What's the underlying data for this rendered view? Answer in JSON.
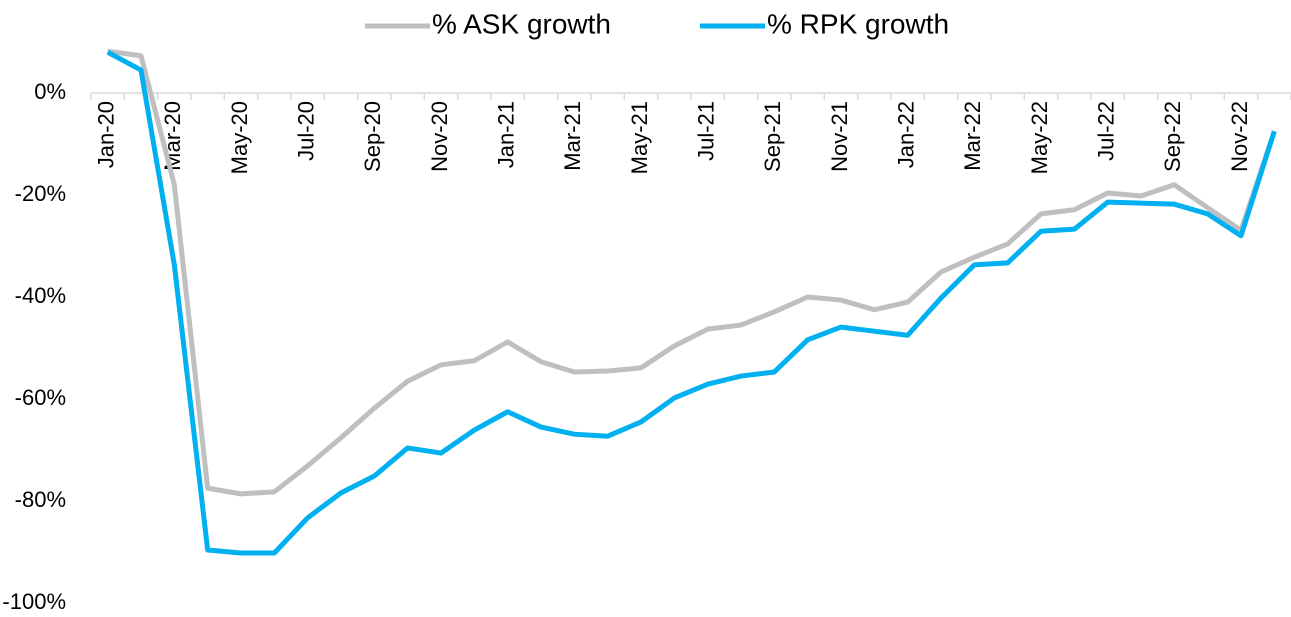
{
  "chart_data": {
    "type": "line",
    "categories": [
      "Jan-20",
      null,
      "Mar-20",
      null,
      "May-20",
      null,
      "Jul-20",
      null,
      "Sep-20",
      null,
      "Nov-20",
      null,
      "Jan-21",
      null,
      "Mar-21",
      null,
      "May-21",
      null,
      "Jul-21",
      null,
      "Sep-21",
      null,
      "Nov-21",
      null,
      "Jan-22",
      null,
      "Mar-22",
      null,
      "May-22",
      null,
      "Jul-22",
      null,
      "Sep-22",
      null,
      "Nov-22",
      null
    ],
    "series": [
      {
        "name": "% ASK growth",
        "color": "#bfbfbf",
        "values": [
          8.2,
          7.3,
          -18,
          -77.5,
          -78.6,
          -78.2,
          -73.1,
          -67.6,
          -61.8,
          -56.5,
          -53.3,
          -52.5,
          -48.8,
          -52.7,
          -54.7,
          -54.5,
          -53.9,
          -49.6,
          -46.3,
          -45.5,
          -42.9,
          -40,
          -40.6,
          -42.5,
          -41,
          -35.1,
          -32.2,
          -29.6,
          -23.7,
          -22.9,
          -19.6,
          -20.2,
          -18,
          -22.5,
          -26.9,
          -7.5
        ]
      },
      {
        "name": "% RPK growth",
        "color": "#00b0f0",
        "values": [
          8,
          4.5,
          -33.7,
          -89.6,
          -90.2,
          -90.2,
          -83.3,
          -78.4,
          -75.1,
          -69.6,
          -70.6,
          -66.1,
          -62.5,
          -65.5,
          -66.9,
          -67.3,
          -64.5,
          -59.8,
          -57.1,
          -55.5,
          -54.7,
          -48.4,
          -45.9,
          -46.7,
          -47.5,
          -40.2,
          -33.7,
          -33.3,
          -27.1,
          -26.7,
          -21.4,
          -21.6,
          -21.8,
          -23.7,
          -28,
          -7.5
        ]
      }
    ],
    "ylim": [
      -100,
      10
    ],
    "yticks": [
      {
        "value": 0,
        "label": "0%"
      },
      {
        "value": -20,
        "label": "-20%"
      },
      {
        "value": -40,
        "label": "-40%"
      },
      {
        "value": -60,
        "label": "-60%"
      },
      {
        "value": -80,
        "label": "-80%"
      },
      {
        "value": -100,
        "label": "-100%"
      }
    ],
    "legend": "top"
  }
}
